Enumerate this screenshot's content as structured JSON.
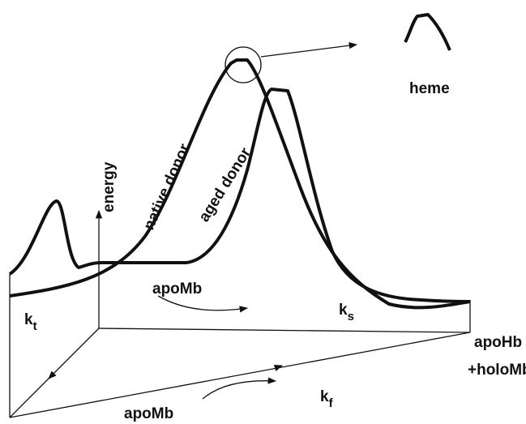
{
  "inset_label": "heme",
  "axis_label": "energy",
  "curves": [
    {
      "label": "native donor"
    },
    {
      "label": "aged donor"
    }
  ],
  "species": {
    "upper_apoMb": "apoMb",
    "lower_apoMb": "apoMb",
    "product_1": "apoHb",
    "product_2": "+holoMb"
  },
  "rate_constants": [
    {
      "symbol": "k",
      "subscript": "t"
    },
    {
      "symbol": "k",
      "subscript": "s"
    },
    {
      "symbol": "k",
      "subscript": "f"
    }
  ]
}
